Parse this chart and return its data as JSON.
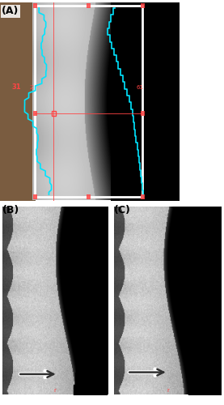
{
  "fig_width": 2.77,
  "fig_height": 5.0,
  "dpi": 100,
  "bg_color": "#ffffff",
  "label_A": "(A)",
  "label_B": "(B)",
  "label_C": "(C)",
  "label_fontsize": 9,
  "label_fontweight": "bold",
  "cyan_color": "#00e5ff",
  "red_color": "#ff4444",
  "white_color": "#ffffff",
  "arrow_color": "#303030"
}
